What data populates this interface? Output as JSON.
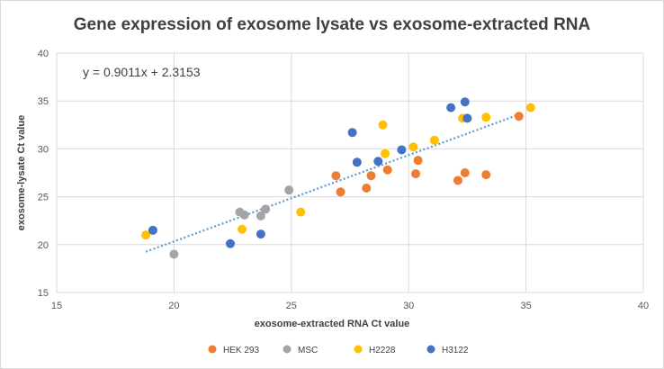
{
  "chart_data": {
    "type": "scatter",
    "title": "Gene expression of exosome lysate vs exosome-extracted RNA",
    "xlabel": "exosome-extracted RNA Ct value",
    "ylabel": "exosome-lysate Ct value",
    "xlim": [
      15,
      40
    ],
    "ylim": [
      15,
      40
    ],
    "xticks": [
      "15",
      "20",
      "25",
      "30",
      "35",
      "40"
    ],
    "yticks": [
      "15",
      "20",
      "25",
      "30",
      "35",
      "40"
    ],
    "grid": true,
    "legend_position": "bottom",
    "trendline": {
      "equation": "y = 0.9011x + 2.3153",
      "slope": 0.9011,
      "intercept": 2.3153,
      "x_range": [
        18.8,
        34.8
      ],
      "color": "#5b9bd5",
      "style": "dotted"
    },
    "series": [
      {
        "name": "HEK 293",
        "color": "#ed7d31",
        "points": [
          [
            26.9,
            27.2
          ],
          [
            27.1,
            25.5
          ],
          [
            28.2,
            25.9
          ],
          [
            28.4,
            27.2
          ],
          [
            29.1,
            27.8
          ],
          [
            30.3,
            27.4
          ],
          [
            30.4,
            28.8
          ],
          [
            32.1,
            26.7
          ],
          [
            32.4,
            27.5
          ],
          [
            33.3,
            27.3
          ],
          [
            34.7,
            33.4
          ]
        ]
      },
      {
        "name": "MSC",
        "color": "#a5a5a5",
        "points": [
          [
            20.0,
            19.0
          ],
          [
            22.8,
            23.4
          ],
          [
            23.0,
            23.1
          ],
          [
            23.7,
            23.0
          ],
          [
            23.9,
            23.7
          ],
          [
            24.9,
            25.7
          ]
        ]
      },
      {
        "name": "H2228",
        "color": "#ffc000",
        "points": [
          [
            18.8,
            21.0
          ],
          [
            22.9,
            21.6
          ],
          [
            25.4,
            23.4
          ],
          [
            28.9,
            32.5
          ],
          [
            29.0,
            29.5
          ],
          [
            30.2,
            30.2
          ],
          [
            31.1,
            30.9
          ],
          [
            32.3,
            33.2
          ],
          [
            33.3,
            33.3
          ],
          [
            35.2,
            34.3
          ]
        ]
      },
      {
        "name": "H3122",
        "color": "#4472c4",
        "points": [
          [
            19.1,
            21.5
          ],
          [
            22.4,
            20.1
          ],
          [
            23.7,
            21.1
          ],
          [
            27.6,
            31.7
          ],
          [
            27.8,
            28.6
          ],
          [
            28.7,
            28.7
          ],
          [
            29.7,
            29.9
          ],
          [
            31.8,
            34.3
          ],
          [
            32.4,
            34.9
          ],
          [
            32.5,
            33.2
          ]
        ]
      }
    ]
  }
}
